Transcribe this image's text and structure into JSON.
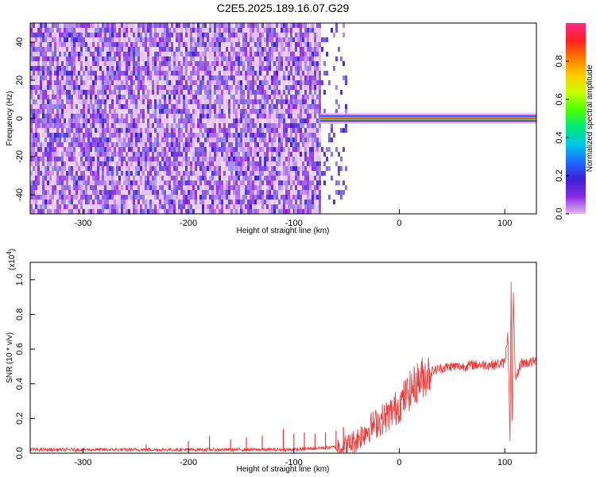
{
  "title": "C2E5.2025.189.16.07.G29",
  "colors": {
    "line": "#e83a3a",
    "spectral": [
      "#e3b8f0",
      "#8a2be2",
      "#3a1fd6",
      "#1f6bff",
      "#00c8e8",
      "#00e87a",
      "#49ff00",
      "#c8ff00",
      "#ffcc00",
      "#ff7a00",
      "#ff2020",
      "#ff2a8a"
    ]
  },
  "chart_data": [
    {
      "type": "heatmap",
      "title": "C2E5.2025.189.16.07.G29",
      "xlabel": "Height of straight line (km)",
      "ylabel": "Frequency (Hz)",
      "xlim": [
        -350,
        130
      ],
      "ylim": [
        -50,
        50
      ],
      "xticks": [
        -300,
        -200,
        -100,
        0,
        100
      ],
      "yticks": [
        -40,
        -20,
        0,
        20,
        40
      ],
      "colorbar": {
        "label": "Normalized spectral amplitude",
        "range": [
          0.0,
          1.0
        ],
        "ticks": [
          0.0,
          0.2,
          0.4,
          0.6,
          0.8
        ]
      },
      "features": {
        "noise_region_x": [
          -350,
          -75
        ],
        "fading_noise_x": [
          -75,
          -50
        ],
        "tone_frequency_hz": 0,
        "tone_x": [
          -75,
          130
        ]
      }
    },
    {
      "type": "line",
      "xlabel": "Height of straight line (km)",
      "ylabel": "SNR (10 * v/v)",
      "scale_label": "(x10",
      "scale_exp": "4",
      "scale_close": ")",
      "xlim": [
        -350,
        130
      ],
      "ylim": [
        0,
        1.1
      ],
      "xticks": [
        -300,
        -200,
        -100,
        0,
        100
      ],
      "yticks": [
        0.0,
        0.2,
        0.4,
        0.6,
        0.8,
        1.0
      ],
      "series": [
        {
          "x": [
            -350,
            -300,
            -250,
            -200,
            -150,
            -100,
            -75,
            -50,
            -40,
            -30,
            -20,
            -10,
            0,
            10,
            20,
            30,
            40,
            50,
            60,
            70,
            80,
            90,
            100,
            103,
            105,
            106,
            107,
            108,
            110,
            115,
            120,
            130
          ],
          "y": [
            0.02,
            0.02,
            0.02,
            0.02,
            0.02,
            0.02,
            0.03,
            0.04,
            0.08,
            0.14,
            0.18,
            0.22,
            0.28,
            0.36,
            0.43,
            0.47,
            0.49,
            0.5,
            0.5,
            0.51,
            0.51,
            0.51,
            0.52,
            0.7,
            0.05,
            1.02,
            0.1,
            0.98,
            0.4,
            0.52,
            0.52,
            0.53
          ]
        }
      ],
      "spikes": [
        {
          "x": -240,
          "y": 0.05
        },
        {
          "x": -200,
          "y": 0.07
        },
        {
          "x": -180,
          "y": 0.1
        },
        {
          "x": -160,
          "y": 0.08
        },
        {
          "x": -145,
          "y": 0.09
        },
        {
          "x": -130,
          "y": 0.1
        },
        {
          "x": -110,
          "y": 0.14
        },
        {
          "x": -100,
          "y": 0.11
        },
        {
          "x": -90,
          "y": 0.12
        },
        {
          "x": -80,
          "y": 0.11
        },
        {
          "x": -70,
          "y": 0.12
        },
        {
          "x": -60,
          "y": 0.13
        },
        {
          "x": -53,
          "y": 0.15
        }
      ]
    }
  ]
}
